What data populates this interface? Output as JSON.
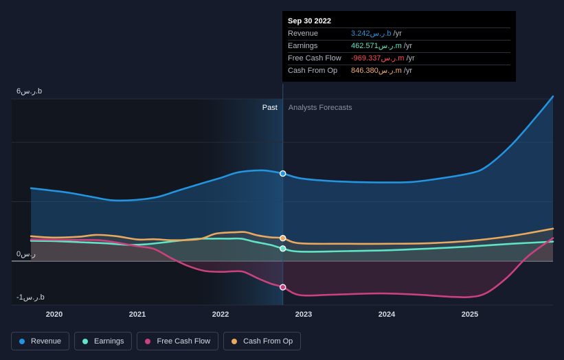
{
  "tooltip": {
    "date": "Sep 30 2022",
    "rows": [
      {
        "label": "Revenue",
        "value": "3.242ر.س.b",
        "unit": "/yr",
        "color": "#2394df"
      },
      {
        "label": "Earnings",
        "value": "462.571ر.س.m",
        "unit": "/yr",
        "color": "#5fe4c5"
      },
      {
        "label": "Free Cash Flow",
        "value": "-969.337ر.س.m",
        "unit": "/yr",
        "color": "#ff4c5c"
      },
      {
        "label": "Cash From Op",
        "value": "846.380ر.س.m",
        "unit": "/yr",
        "color": "#f2b06b"
      }
    ]
  },
  "sections": {
    "past": "Past",
    "forecast": "Analysts Forecasts"
  },
  "legend": [
    {
      "label": "Revenue",
      "color": "#2394df"
    },
    {
      "label": "Earnings",
      "color": "#5fe4c5"
    },
    {
      "label": "Free Cash Flow",
      "color": "#c9427e"
    },
    {
      "label": "Cash From Op",
      "color": "#e9a95e"
    }
  ],
  "chart_data": {
    "type": "line",
    "y_tick_labels": [
      "6ر.س.b",
      "0ر.س",
      "-1ر.س.b"
    ],
    "x_tick_labels": [
      "2020",
      "2021",
      "2022",
      "2023",
      "2024",
      "2025"
    ],
    "ylim": [
      -1.0,
      6.0
    ],
    "xlim": [
      2019.5,
      2026.0
    ],
    "past_end": 2022.75,
    "highlight_start": 2021.75,
    "series": [
      {
        "name": "Revenue",
        "color": "#2394df",
        "points": [
          [
            2019.72,
            2.7
          ],
          [
            2020.0,
            2.6
          ],
          [
            2020.2,
            2.52
          ],
          [
            2020.45,
            2.38
          ],
          [
            2020.7,
            2.25
          ],
          [
            2021.0,
            2.27
          ],
          [
            2021.25,
            2.38
          ],
          [
            2021.5,
            2.62
          ],
          [
            2021.8,
            2.9
          ],
          [
            2022.0,
            3.08
          ],
          [
            2022.2,
            3.28
          ],
          [
            2022.4,
            3.35
          ],
          [
            2022.55,
            3.35
          ],
          [
            2022.75,
            3.242
          ],
          [
            2022.95,
            3.07
          ],
          [
            2023.25,
            2.98
          ],
          [
            2023.6,
            2.93
          ],
          [
            2024.0,
            2.91
          ],
          [
            2024.3,
            2.93
          ],
          [
            2024.6,
            3.04
          ],
          [
            2025.0,
            3.25
          ],
          [
            2025.2,
            3.5
          ],
          [
            2025.5,
            4.3
          ],
          [
            2025.8,
            5.35
          ],
          [
            2026.0,
            6.1
          ]
        ]
      },
      {
        "name": "Earnings",
        "color": "#5fe4c5",
        "points": [
          [
            2019.72,
            0.75
          ],
          [
            2020.0,
            0.74
          ],
          [
            2020.3,
            0.7
          ],
          [
            2020.6,
            0.66
          ],
          [
            2020.9,
            0.6
          ],
          [
            2021.1,
            0.62
          ],
          [
            2021.4,
            0.72
          ],
          [
            2021.7,
            0.82
          ],
          [
            2021.9,
            0.83
          ],
          [
            2022.1,
            0.83
          ],
          [
            2022.25,
            0.83
          ],
          [
            2022.4,
            0.72
          ],
          [
            2022.6,
            0.6
          ],
          [
            2022.75,
            0.4626
          ],
          [
            2022.95,
            0.35
          ],
          [
            2023.5,
            0.37
          ],
          [
            2024.0,
            0.4
          ],
          [
            2024.5,
            0.46
          ],
          [
            2025.0,
            0.54
          ],
          [
            2025.5,
            0.64
          ],
          [
            2026.0,
            0.72
          ]
        ]
      },
      {
        "name": "Free Cash Flow",
        "color": "#c9427e",
        "points": [
          [
            2019.72,
            0.8
          ],
          [
            2020.0,
            0.79
          ],
          [
            2020.3,
            0.78
          ],
          [
            2020.55,
            0.77
          ],
          [
            2020.8,
            0.66
          ],
          [
            2021.0,
            0.55
          ],
          [
            2021.2,
            0.45
          ],
          [
            2021.4,
            0.12
          ],
          [
            2021.6,
            -0.17
          ],
          [
            2021.8,
            -0.36
          ],
          [
            2022.0,
            -0.4
          ],
          [
            2022.15,
            -0.38
          ],
          [
            2022.28,
            -0.4
          ],
          [
            2022.45,
            -0.64
          ],
          [
            2022.6,
            -0.83
          ],
          [
            2022.75,
            -0.9693
          ],
          [
            2022.95,
            -1.26
          ],
          [
            2023.3,
            -1.25
          ],
          [
            2023.7,
            -1.21
          ],
          [
            2024.0,
            -1.2
          ],
          [
            2024.4,
            -1.25
          ],
          [
            2024.75,
            -1.32
          ],
          [
            2025.0,
            -1.33
          ],
          [
            2025.2,
            -1.18
          ],
          [
            2025.45,
            -0.6
          ],
          [
            2025.7,
            0.18
          ],
          [
            2026.0,
            0.85
          ]
        ]
      },
      {
        "name": "Cash From Op",
        "color": "#e9a95e",
        "points": [
          [
            2019.72,
            0.92
          ],
          [
            2020.0,
            0.87
          ],
          [
            2020.3,
            0.9
          ],
          [
            2020.5,
            0.97
          ],
          [
            2020.75,
            0.92
          ],
          [
            2021.0,
            0.8
          ],
          [
            2021.2,
            0.81
          ],
          [
            2021.45,
            0.77
          ],
          [
            2021.75,
            0.82
          ],
          [
            2021.95,
            1.02
          ],
          [
            2022.2,
            1.07
          ],
          [
            2022.3,
            1.07
          ],
          [
            2022.45,
            0.95
          ],
          [
            2022.6,
            0.88
          ],
          [
            2022.75,
            0.8464
          ],
          [
            2022.95,
            0.66
          ],
          [
            2023.5,
            0.64
          ],
          [
            2024.0,
            0.64
          ],
          [
            2024.5,
            0.66
          ],
          [
            2025.0,
            0.75
          ],
          [
            2025.5,
            0.93
          ],
          [
            2026.0,
            1.2
          ]
        ]
      }
    ]
  }
}
